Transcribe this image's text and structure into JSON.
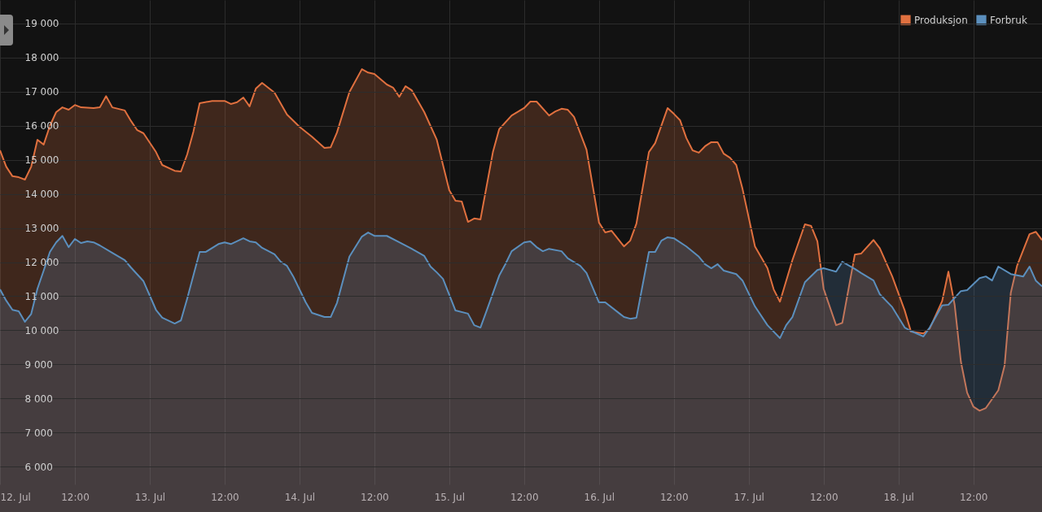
{
  "chart_data": {
    "type": "area",
    "legend": "top right",
    "grid": true,
    "line_style": "solid",
    "marker": "none",
    "xlim": [
      "--07-12T00:00",
      "--07-18T23:00"
    ],
    "xticks": [
      {
        "value": "--07-12T00:00",
        "label": "12. Jul"
      },
      {
        "value": "--07-12T12:00",
        "label": "12:00"
      },
      {
        "value": "--07-13T00:00",
        "label": "13. Jul"
      },
      {
        "value": "--07-13T12:00",
        "label": "12:00"
      },
      {
        "value": "--07-14T00:00",
        "label": "14. Jul"
      },
      {
        "value": "--07-14T12:00",
        "label": "12:00"
      },
      {
        "value": "--07-15T00:00",
        "label": "15. Jul"
      },
      {
        "value": "--07-15T12:00",
        "label": "12:00"
      },
      {
        "value": "--07-16T00:00",
        "label": "16. Jul"
      },
      {
        "value": "--07-16T12:00",
        "label": "12:00"
      },
      {
        "value": "--07-17T00:00",
        "label": "17. Jul"
      },
      {
        "value": "--07-17T12:00",
        "label": "12:00"
      },
      {
        "value": "--07-18T00:00",
        "label": "18. Jul"
      },
      {
        "value": "--07-18T12:00",
        "label": "12:00"
      }
    ],
    "ylim": [
      5480,
      19690
    ],
    "yticks": [
      {
        "value": 6000,
        "label": "6 000"
      },
      {
        "value": 7000,
        "label": "7 000"
      },
      {
        "value": 8000,
        "label": "8 000"
      },
      {
        "value": 9000,
        "label": "9 000"
      },
      {
        "value": 10000,
        "label": "10 000"
      },
      {
        "value": 11000,
        "label": "11 000"
      },
      {
        "value": 12000,
        "label": "12 000"
      },
      {
        "value": 13000,
        "label": "13 000"
      },
      {
        "value": 14000,
        "label": "14 000"
      },
      {
        "value": 15000,
        "label": "15 000"
      },
      {
        "value": 16000,
        "label": "16 000"
      },
      {
        "value": 17000,
        "label": "17 000"
      },
      {
        "value": 18000,
        "label": "18 000"
      },
      {
        "value": 19000,
        "label": "19 000"
      }
    ],
    "series": [
      {
        "name": "Produksjon",
        "color": "#e0703f",
        "x": [
          "--07-12T00:00",
          "--07-12T01:00",
          "--07-12T02:00",
          "--07-12T03:00",
          "--07-12T04:00",
          "--07-12T05:00",
          "--07-12T06:00",
          "--07-12T07:00",
          "--07-12T08:00",
          "--07-12T09:00",
          "--07-12T10:00",
          "--07-12T11:00",
          "--07-12T12:00",
          "--07-12T13:00",
          "--07-12T15:00",
          "--07-12T16:00",
          "--07-12T17:00",
          "--07-12T18:00",
          "--07-12T20:00",
          "--07-12T21:00",
          "--07-12T22:00",
          "--07-12T23:00",
          "--07-13T01:00",
          "--07-13T02:00",
          "--07-13T04:00",
          "--07-13T05:00",
          "--07-13T06:00",
          "--07-13T07:00",
          "--07-13T08:00",
          "--07-13T10:00",
          "--07-13T12:00",
          "--07-13T13:00",
          "--07-13T14:00",
          "--07-13T15:00",
          "--07-13T16:00",
          "--07-13T17:00",
          "--07-13T18:00",
          "--07-13T20:00",
          "--07-13T22:00",
          "--07-14T00:00",
          "--07-14T02:00",
          "--07-14T04:00",
          "--07-14T05:00",
          "--07-14T06:00",
          "--07-14T08:00",
          "--07-14T10:00",
          "--07-14T11:00",
          "--07-14T12:00",
          "--07-14T14:00",
          "--07-14T15:00",
          "--07-14T16:00",
          "--07-14T17:00",
          "--07-14T18:00",
          "--07-14T20:00",
          "--07-14T22:00",
          "--07-15T00:00",
          "--07-15T01:00",
          "--07-15T02:00",
          "--07-15T03:00",
          "--07-15T04:00",
          "--07-15T05:00",
          "--07-15T07:00",
          "--07-15T08:00",
          "--07-15T10:00",
          "--07-15T12:00",
          "--07-15T13:00",
          "--07-15T14:00",
          "--07-15T16:00",
          "--07-15T17:00",
          "--07-15T18:00",
          "--07-15T19:00",
          "--07-15T20:00",
          "--07-15T22:00",
          "--07-16T00:00",
          "--07-16T01:00",
          "--07-16T02:00",
          "--07-16T04:00",
          "--07-16T05:00",
          "--07-16T06:00",
          "--07-16T08:00",
          "--07-16T09:00",
          "--07-16T11:00",
          "--07-16T12:00",
          "--07-16T13:00",
          "--07-16T14:00",
          "--07-16T15:00",
          "--07-16T16:00",
          "--07-16T17:00",
          "--07-16T18:00",
          "--07-16T19:00",
          "--07-16T20:00",
          "--07-16T21:00",
          "--07-16T22:00",
          "--07-16T23:00",
          "--07-17T01:00",
          "--07-17T03:00",
          "--07-17T04:00",
          "--07-17T05:00",
          "--07-17T07:00",
          "--07-17T09:00",
          "--07-17T10:00",
          "--07-17T11:00",
          "--07-17T12:00",
          "--07-17T14:00",
          "--07-17T15:00",
          "--07-17T17:00",
          "--07-17T18:00",
          "--07-17T20:00",
          "--07-17T21:00",
          "--07-17T23:00",
          "--07-18T01:00",
          "--07-18T02:00",
          "--07-18T04:00",
          "--07-18T05:00",
          "--07-18T07:00",
          "--07-18T08:00",
          "--07-18T09:00",
          "--07-18T10:00",
          "--07-18T11:00",
          "--07-18T12:00",
          "--07-18T13:00",
          "--07-18T14:00",
          "--07-18T16:00",
          "--07-18T17:00",
          "--07-18T18:00",
          "--07-18T19:00",
          "--07-18T21:00",
          "--07-18T22:00",
          "--07-18T23:00"
        ],
        "values": [
          15280,
          14800,
          14520,
          14490,
          14420,
          14800,
          15590,
          15450,
          16000,
          16400,
          16540,
          16470,
          16610,
          16540,
          16520,
          16540,
          16870,
          16540,
          16450,
          16140,
          15870,
          15780,
          15230,
          14850,
          14680,
          14660,
          15160,
          15830,
          16660,
          16730,
          16730,
          16640,
          16690,
          16830,
          16570,
          17090,
          17260,
          16970,
          16330,
          15970,
          15680,
          15350,
          15370,
          15800,
          16990,
          17660,
          17560,
          17520,
          17210,
          17120,
          16850,
          17160,
          17040,
          16400,
          15590,
          14110,
          13800,
          13780,
          13180,
          13280,
          13250,
          15230,
          15900,
          16300,
          16520,
          16710,
          16710,
          16300,
          16420,
          16500,
          16470,
          16260,
          15300,
          13160,
          12870,
          12920,
          12460,
          12630,
          13130,
          15230,
          15490,
          16520,
          16350,
          16160,
          15640,
          15280,
          15210,
          15400,
          15520,
          15520,
          15180,
          15060,
          14850,
          14150,
          12460,
          11820,
          11200,
          10840,
          12060,
          13110,
          13060,
          12610,
          11220,
          10150,
          10220,
          12220,
          12250,
          12650,
          12410,
          11580,
          10580,
          9960,
          9910,
          10050,
          10860,
          11720,
          10750,
          9080,
          8170,
          7760,
          7640,
          7720,
          8240,
          8960,
          11100,
          11890,
          12820,
          12890,
          12650
        ]
      },
      {
        "name": "Forbruk",
        "color": "#5b8fbd",
        "x": [
          "--07-12T00:00",
          "--07-12T01:00",
          "--07-12T02:00",
          "--07-12T03:00",
          "--07-12T04:00",
          "--07-12T05:00",
          "--07-12T06:00",
          "--07-12T07:00",
          "--07-12T08:00",
          "--07-12T09:00",
          "--07-12T10:00",
          "--07-12T11:00",
          "--07-12T12:00",
          "--07-12T13:00",
          "--07-12T14:00",
          "--07-12T15:00",
          "--07-12T16:00",
          "--07-12T18:00",
          "--07-12T20:00",
          "--07-12T21:00",
          "--07-12T23:00",
          "--07-13T01:00",
          "--07-13T02:00",
          "--07-13T04:00",
          "--07-13T05:00",
          "--07-13T06:00",
          "--07-13T08:00",
          "--07-13T09:00",
          "--07-13T11:00",
          "--07-13T12:00",
          "--07-13T13:00",
          "--07-13T15:00",
          "--07-13T16:00",
          "--07-13T17:00",
          "--07-13T18:00",
          "--07-13T20:00",
          "--07-13T21:00",
          "--07-13T22:00",
          "--07-13T23:00",
          "--07-14T01:00",
          "--07-14T02:00",
          "--07-14T04:00",
          "--07-14T05:00",
          "--07-14T06:00",
          "--07-14T08:00",
          "--07-14T10:00",
          "--07-14T11:00",
          "--07-14T12:00",
          "--07-14T14:00",
          "--07-14T16:00",
          "--07-14T18:00",
          "--07-14T20:00",
          "--07-14T21:00",
          "--07-14T22:00",
          "--07-14T23:00",
          "--07-15T01:00",
          "--07-15T03:00",
          "--07-15T04:00",
          "--07-15T05:00",
          "--07-15T06:00",
          "--07-15T08:00",
          "--07-15T09:00",
          "--07-15T10:00",
          "--07-15T12:00",
          "--07-15T13:00",
          "--07-15T14:00",
          "--07-15T15:00",
          "--07-15T16:00",
          "--07-15T18:00",
          "--07-15T19:00",
          "--07-15T21:00",
          "--07-15T22:00",
          "--07-16T00:00",
          "--07-16T01:00",
          "--07-16T04:00",
          "--07-16T05:00",
          "--07-16T06:00",
          "--07-16T08:00",
          "--07-16T09:00",
          "--07-16T10:00",
          "--07-16T11:00",
          "--07-16T12:00",
          "--07-16T14:00",
          "--07-16T16:00",
          "--07-16T17:00",
          "--07-16T18:00",
          "--07-16T19:00",
          "--07-16T20:00",
          "--07-16T22:00",
          "--07-16T23:00",
          "--07-17T01:00",
          "--07-17T03:00",
          "--07-17T05:00",
          "--07-17T06:00",
          "--07-17T07:00",
          "--07-17T09:00",
          "--07-17T11:00",
          "--07-17T12:00",
          "--07-17T14:00",
          "--07-17T15:00",
          "--07-17T17:00",
          "--07-17T18:00",
          "--07-17T20:00",
          "--07-17T21:00",
          "--07-17T23:00",
          "--07-18T01:00",
          "--07-18T02:00",
          "--07-18T04:00",
          "--07-18T05:00",
          "--07-18T07:00",
          "--07-18T08:00",
          "--07-18T10:00",
          "--07-18T11:00",
          "--07-18T13:00",
          "--07-18T14:00",
          "--07-18T15:00",
          "--07-18T16:00",
          "--07-18T18:00",
          "--07-18T20:00",
          "--07-18T21:00",
          "--07-18T22:00",
          "--07-18T23:00"
        ],
        "values": [
          11200,
          10870,
          10600,
          10560,
          10250,
          10480,
          11220,
          11750,
          12300,
          12580,
          12770,
          12440,
          12680,
          12560,
          12610,
          12580,
          12490,
          12270,
          12060,
          11840,
          11440,
          10600,
          10370,
          10200,
          10290,
          10930,
          12300,
          12300,
          12530,
          12580,
          12530,
          12700,
          12610,
          12580,
          12420,
          12230,
          12010,
          11890,
          11580,
          10820,
          10510,
          10390,
          10390,
          10800,
          12160,
          12750,
          12870,
          12770,
          12770,
          12580,
          12390,
          12180,
          11870,
          11700,
          11510,
          10580,
          10490,
          10150,
          10080,
          10580,
          11600,
          11940,
          12320,
          12580,
          12610,
          12440,
          12320,
          12390,
          12320,
          12110,
          11890,
          11680,
          10820,
          10820,
          10390,
          10340,
          10370,
          12300,
          12300,
          12630,
          12730,
          12700,
          12460,
          12160,
          11940,
          11820,
          11940,
          11750,
          11650,
          11460,
          10700,
          10150,
          9770,
          10150,
          10390,
          11410,
          11770,
          11820,
          11720,
          12010,
          11800,
          11680,
          11460,
          11060,
          10680,
          10080,
          9980,
          9820,
          10080,
          10730,
          10750,
          11150,
          11180,
          11530,
          11580,
          11460,
          11870,
          11650,
          11580,
          11870,
          11460,
          11290
        ]
      }
    ]
  }
}
